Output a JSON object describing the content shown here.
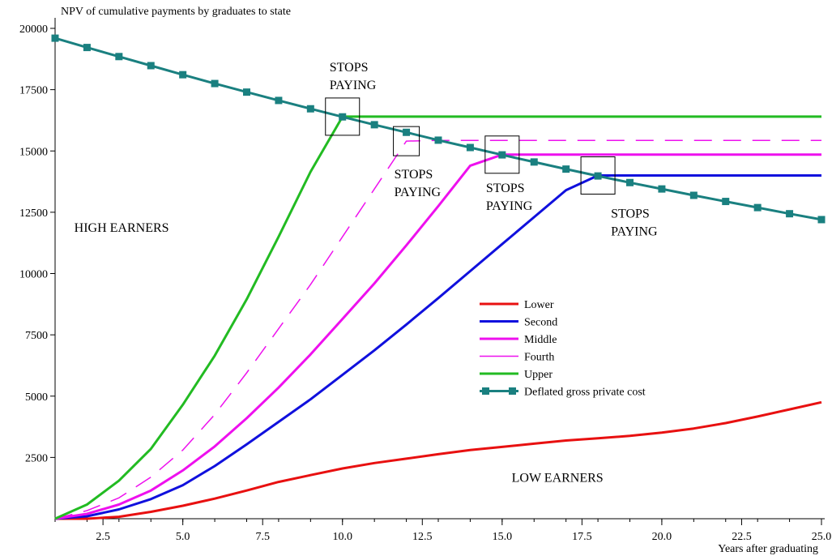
{
  "chart_data": {
    "type": "line",
    "title": "NPV of cumulative payments by graduates to state",
    "xlabel": "Years after graduating",
    "ylabel": "",
    "xlim": [
      1,
      25
    ],
    "ylim": [
      0,
      20000
    ],
    "x_ticks": [
      2.5,
      5.0,
      7.5,
      10.0,
      12.5,
      15.0,
      17.5,
      20.0,
      22.5,
      25.0
    ],
    "x_tick_labels": [
      "2.5",
      "5.0",
      "7.5",
      "10.0",
      "12.5",
      "15.0",
      "17.5",
      "20.0",
      "22.5",
      "25.0"
    ],
    "y_ticks": [
      2500,
      5000,
      7500,
      10000,
      12500,
      15000,
      17500,
      20000
    ],
    "y_tick_labels": [
      "2500",
      "5000",
      "7500",
      "10000",
      "12500",
      "15000",
      "17500",
      "20000"
    ],
    "grid": false,
    "legend_position": "center-right",
    "x": [
      1,
      2,
      3,
      4,
      5,
      6,
      7,
      8,
      9,
      10,
      11,
      12,
      13,
      14,
      15,
      16,
      17,
      18,
      19,
      20,
      21,
      22,
      23,
      24,
      25
    ],
    "series": [
      {
        "name": "Lower",
        "color": "#e81010",
        "style": "solid",
        "width": 3,
        "values": [
          0,
          0,
          80,
          280,
          530,
          820,
          1150,
          1500,
          1780,
          2050,
          2270,
          2450,
          2630,
          2800,
          2930,
          3060,
          3190,
          3280,
          3380,
          3510,
          3680,
          3900,
          4170,
          4460,
          4750
        ]
      },
      {
        "name": "Second",
        "color": "#1010dd",
        "style": "solid",
        "width": 3,
        "values": [
          0,
          100,
          380,
          800,
          1370,
          2150,
          3030,
          3950,
          4870,
          5870,
          6870,
          7920,
          9000,
          10100,
          11200,
          12300,
          13400,
          14000,
          14000,
          14000,
          14000,
          14000,
          14000,
          14000,
          14000
        ]
      },
      {
        "name": "Middle",
        "color": "#ee10ee",
        "style": "solid",
        "width": 3,
        "values": [
          0,
          200,
          580,
          1150,
          1970,
          2950,
          4100,
          5350,
          6700,
          8150,
          9600,
          11150,
          12750,
          14400,
          14850,
          14850,
          14850,
          14850,
          14850,
          14850,
          14850,
          14850,
          14850,
          14850,
          14850
        ]
      },
      {
        "name": "Fourth",
        "color": "#ee10ee",
        "style": "dashed",
        "width": 1.5,
        "values": [
          0,
          330,
          850,
          1700,
          2800,
          4250,
          5950,
          7750,
          9550,
          11500,
          13450,
          15400,
          15430,
          15430,
          15430,
          15430,
          15430,
          15430,
          15430,
          15430,
          15430,
          15430,
          15430,
          15430,
          15430
        ]
      },
      {
        "name": "Upper",
        "color": "#22bb22",
        "style": "solid",
        "width": 3,
        "values": [
          0,
          580,
          1550,
          2850,
          4650,
          6650,
          8950,
          11500,
          14150,
          16400,
          16400,
          16400,
          16400,
          16400,
          16400,
          16400,
          16400,
          16400,
          16400,
          16400,
          16400,
          16400,
          16400,
          16400,
          16400
        ]
      },
      {
        "name": "Deflated gross private cost",
        "color": "#1a8080",
        "style": "solid-markers",
        "width": 3,
        "values": [
          19600,
          19220,
          18850,
          18480,
          18110,
          17750,
          17400,
          17060,
          16720,
          16390,
          16070,
          15760,
          15440,
          15140,
          14840,
          14550,
          14260,
          13980,
          13710,
          13450,
          13190,
          12940,
          12690,
          12440,
          12200
        ]
      }
    ],
    "annotations": [
      {
        "text_lines": [
          "STOPS",
          "PAYING"
        ],
        "ref_series": "Upper",
        "x": 10,
        "y": 16400,
        "label_position": "above"
      },
      {
        "text_lines": [
          "STOPS",
          "PAYING"
        ],
        "ref_series": "Fourth",
        "x": 12,
        "y": 15400,
        "label_position": "below"
      },
      {
        "text_lines": [
          "STOPS",
          "PAYING"
        ],
        "ref_series": "Middle",
        "x": 15,
        "y": 14850,
        "label_position": "below"
      },
      {
        "text_lines": [
          "STOPS",
          "PAYING"
        ],
        "ref_series": "Second",
        "x": 18,
        "y": 14000,
        "label_position": "below-right"
      }
    ],
    "region_labels": [
      {
        "text": "HIGH EARNERS",
        "x": 1.6,
        "y": 11700
      },
      {
        "text": "LOW EARNERS",
        "x": 15.3,
        "y": 1500
      }
    ]
  }
}
